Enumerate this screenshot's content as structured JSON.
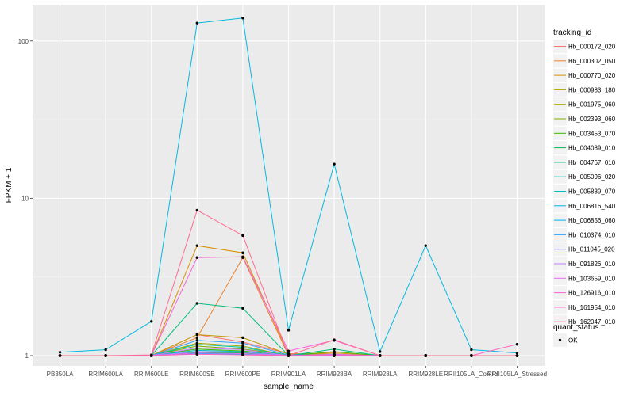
{
  "chart_data": {
    "type": "line",
    "title": "",
    "xlabel": "sample_name",
    "ylabel": "FPKM + 1",
    "y_scale": "log10",
    "ylim": [
      0.86,
      170
    ],
    "y_ticks": [
      1,
      10,
      100
    ],
    "y_tick_labels": [
      "1",
      "10",
      "100"
    ],
    "grid": true,
    "legend_position": "right",
    "categories": [
      "PB350LA",
      "RRIM600LA",
      "RRIM600LE",
      "RRIM600SE",
      "RRIM600PE",
      "RRIM901LA",
      "RRIM928BA",
      "RRIM928LA",
      "RRIM928LE",
      "RRII105LA_Control",
      "RRII105LA_Stressed"
    ],
    "series_legend_title": "tracking_id",
    "series": [
      {
        "name": "Hb_000172_020",
        "color": "#F8766D",
        "values": [
          1,
          1,
          1,
          1.36,
          1.22,
          1.03,
          1.02,
          1,
          1,
          1,
          1
        ]
      },
      {
        "name": "Hb_000302_050",
        "color": "#EA8331",
        "values": [
          1,
          1,
          1,
          1.3,
          4.2,
          1,
          1,
          1,
          1,
          1,
          1
        ]
      },
      {
        "name": "Hb_000770_020",
        "color": "#D89000",
        "values": [
          1,
          1,
          1,
          5.0,
          4.5,
          1.02,
          1.04,
          1,
          1,
          1,
          1
        ]
      },
      {
        "name": "Hb_000983_180",
        "color": "#C09B00",
        "values": [
          1,
          1,
          1,
          1.36,
          1.3,
          1.02,
          1.02,
          1,
          1,
          1,
          1
        ]
      },
      {
        "name": "Hb_001975_060",
        "color": "#A3A500",
        "values": [
          1,
          1,
          1,
          1.2,
          1.15,
          1,
          1,
          1,
          1,
          1,
          1
        ]
      },
      {
        "name": "Hb_002393_060",
        "color": "#7CAE00",
        "values": [
          1,
          1,
          1,
          1.15,
          1.1,
          1.01,
          1.01,
          1,
          1,
          1,
          1
        ]
      },
      {
        "name": "Hb_003453_070",
        "color": "#39B600",
        "values": [
          1,
          1,
          1,
          1.1,
          1.07,
          1,
          1.06,
          1,
          1,
          1,
          1
        ]
      },
      {
        "name": "Hb_004089_010",
        "color": "#00BB4E",
        "values": [
          1,
          1,
          1,
          1.05,
          1.04,
          1,
          1,
          1,
          1,
          1,
          1
        ]
      },
      {
        "name": "Hb_004767_010",
        "color": "#00BF7D",
        "values": [
          1,
          1,
          1,
          2.15,
          2.0,
          1,
          1.1,
          1,
          1,
          1,
          1
        ]
      },
      {
        "name": "Hb_005096_020",
        "color": "#00C1A3",
        "values": [
          1,
          1,
          1,
          1.18,
          1.13,
          1,
          1,
          1,
          1,
          1,
          1
        ]
      },
      {
        "name": "Hb_005839_070",
        "color": "#00BFC4",
        "values": [
          1,
          1,
          1,
          1.08,
          1.06,
          1,
          1,
          1,
          1,
          1,
          1
        ]
      },
      {
        "name": "Hb_006816_540",
        "color": "#00BAE0",
        "values": [
          1.05,
          1.09,
          1.65,
          130,
          140,
          1.45,
          16.5,
          1.06,
          5.0,
          1.09,
          1.04
        ]
      },
      {
        "name": "Hb_006856_060",
        "color": "#00B0F6",
        "values": [
          1,
          1,
          1,
          1.03,
          1.02,
          1,
          1,
          1,
          1,
          1,
          1
        ]
      },
      {
        "name": "Hb_010374_010",
        "color": "#35A2FF",
        "values": [
          1,
          1,
          1,
          1.25,
          1.2,
          1.01,
          1.01,
          1,
          1,
          1,
          1
        ]
      },
      {
        "name": "Hb_011045_020",
        "color": "#9590FF",
        "values": [
          1,
          1,
          1,
          1.06,
          1.05,
          1,
          1,
          1,
          1,
          1,
          1
        ]
      },
      {
        "name": "Hb_091826_010",
        "color": "#C77CFF",
        "values": [
          1,
          1,
          1,
          1.12,
          1.09,
          1,
          1.02,
          1,
          1,
          1,
          1
        ]
      },
      {
        "name": "Hb_103659_010",
        "color": "#E76BF3",
        "values": [
          1,
          1,
          1,
          1.04,
          1.03,
          1,
          1,
          1,
          1,
          1,
          1
        ]
      },
      {
        "name": "Hb_126916_010",
        "color": "#FA62DB",
        "values": [
          1,
          1,
          1,
          4.2,
          4.25,
          1.07,
          1.25,
          1,
          1,
          1,
          1
        ]
      },
      {
        "name": "Hb_161954_010",
        "color": "#FF62BC",
        "values": [
          1,
          1,
          1,
          1.02,
          1.01,
          1,
          1.01,
          1,
          1,
          1,
          1.18
        ]
      },
      {
        "name": "Hb_162047_010",
        "color": "#FF6C91",
        "values": [
          1,
          1,
          1.01,
          8.4,
          5.8,
          1,
          1.26,
          1,
          1,
          1,
          1
        ]
      }
    ],
    "point_legend_title": "quant_status",
    "point_legend_items": [
      "OK"
    ]
  },
  "colors": {
    "panel_background": "#EBEBEB",
    "grid_major": "#FFFFFF",
    "grid_minor": "#F5F5F5",
    "point": "#000000"
  }
}
